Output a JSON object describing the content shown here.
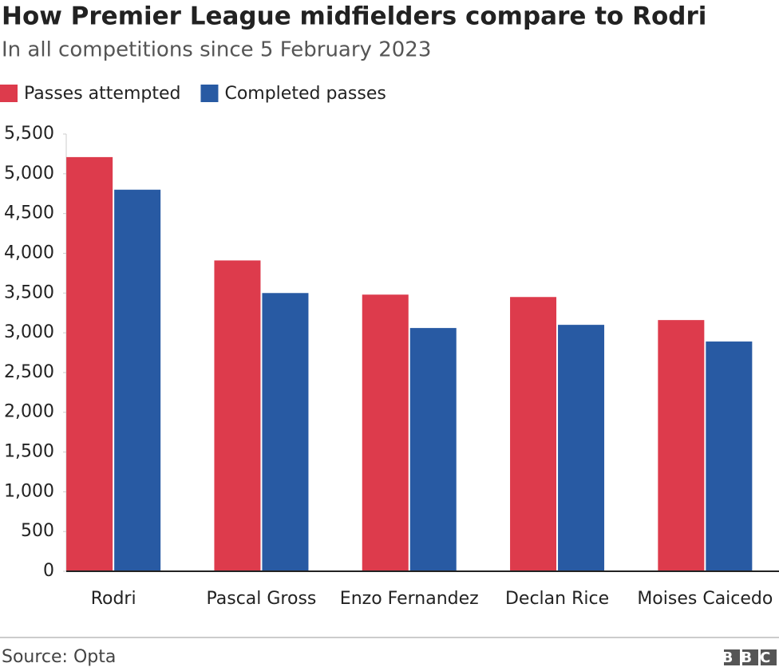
{
  "chart_data": {
    "type": "bar",
    "title": "How Premier League midfielders compare to Rodri",
    "subtitle": "In all competitions since 5 February 2023",
    "categories": [
      "Rodri",
      "Pascal Gross",
      "Enzo Fernandez",
      "Declan Rice",
      "Moises Caicedo"
    ],
    "series": [
      {
        "name": "Passes attempted",
        "color": "#dd3b4c",
        "values": [
          5210,
          3910,
          3480,
          3450,
          3160
        ]
      },
      {
        "name": "Completed passes",
        "color": "#285aa3",
        "values": [
          4800,
          3500,
          3060,
          3100,
          2890
        ]
      }
    ],
    "ylim": [
      0,
      5500
    ],
    "yticks": [
      0,
      500,
      {
        "value": 1000,
        "label": "1,000"
      },
      {
        "value": 1500,
        "label": "1,500"
      },
      {
        "value": 2000,
        "label": "2,000"
      },
      {
        "value": 2500,
        "label": "2,500"
      },
      {
        "value": 3000,
        "label": "3,000"
      },
      {
        "value": 3500,
        "label": "3,500"
      },
      {
        "value": 4000,
        "label": "4,000"
      },
      {
        "value": 4500,
        "label": "4,500"
      },
      {
        "value": 5000,
        "label": "5,000"
      },
      {
        "value": 5500,
        "label": "5,500"
      }
    ],
    "grid": false,
    "legend": "top-left",
    "source": "Source: Opta",
    "logo": "BBC"
  }
}
